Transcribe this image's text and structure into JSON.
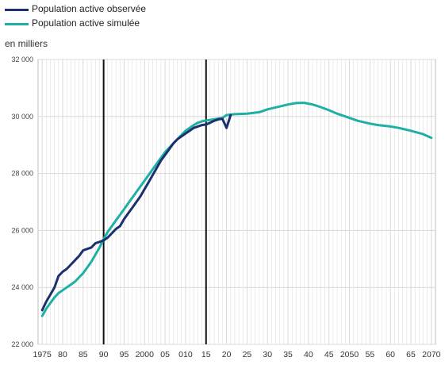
{
  "legend": {
    "observed": "Population active observée",
    "simulated": "Population active simulée"
  },
  "colors": {
    "observed": "#1c2f6e",
    "simulated": "#1fb0a3",
    "grid": "#d9d9d9",
    "marker": "#111111"
  },
  "chart_data": {
    "type": "line",
    "ylabel": "en milliers",
    "ylim": [
      22000,
      32000
    ],
    "xlim": [
      1974,
      2071
    ],
    "yticks": [
      {
        "value": 22000,
        "label": "22 000"
      },
      {
        "value": 24000,
        "label": "24 000"
      },
      {
        "value": 26000,
        "label": "26 000"
      },
      {
        "value": 28000,
        "label": "28 000"
      },
      {
        "value": 30000,
        "label": "30 000"
      },
      {
        "value": 32000,
        "label": "32 000"
      }
    ],
    "xticks": [
      {
        "value": 1975,
        "label": "1975"
      },
      {
        "value": 1980,
        "label": "80"
      },
      {
        "value": 1985,
        "label": "85"
      },
      {
        "value": 1990,
        "label": "90"
      },
      {
        "value": 1995,
        "label": "95"
      },
      {
        "value": 2000,
        "label": "2000"
      },
      {
        "value": 2005,
        "label": "05"
      },
      {
        "value": 2010,
        "label": "010"
      },
      {
        "value": 2015,
        "label": "15"
      },
      {
        "value": 2020,
        "label": "20"
      },
      {
        "value": 2025,
        "label": "25"
      },
      {
        "value": 2030,
        "label": "30"
      },
      {
        "value": 2035,
        "label": "35"
      },
      {
        "value": 2040,
        "label": "40"
      },
      {
        "value": 2045,
        "label": "45"
      },
      {
        "value": 2050,
        "label": "2050"
      },
      {
        "value": 2055,
        "label": "55"
      },
      {
        "value": 2060,
        "label": "60"
      },
      {
        "value": 2065,
        "label": "65"
      },
      {
        "value": 2070,
        "label": "2070"
      }
    ],
    "vertical_markers": [
      1990,
      2015
    ],
    "series": [
      {
        "key": "observed",
        "points": [
          [
            1975,
            23200
          ],
          [
            1976,
            23500
          ],
          [
            1977,
            23750
          ],
          [
            1978,
            24000
          ],
          [
            1979,
            24400
          ],
          [
            1980,
            24550
          ],
          [
            1981,
            24650
          ],
          [
            1982,
            24800
          ],
          [
            1983,
            24950
          ],
          [
            1984,
            25100
          ],
          [
            1985,
            25300
          ],
          [
            1986,
            25350
          ],
          [
            1987,
            25400
          ],
          [
            1988,
            25550
          ],
          [
            1989,
            25600
          ],
          [
            1990,
            25650
          ],
          [
            1991,
            25750
          ],
          [
            1992,
            25900
          ],
          [
            1993,
            26050
          ],
          [
            1994,
            26150
          ],
          [
            1995,
            26400
          ],
          [
            1996,
            26600
          ],
          [
            1997,
            26800
          ],
          [
            1998,
            27000
          ],
          [
            1999,
            27200
          ],
          [
            2000,
            27450
          ],
          [
            2001,
            27700
          ],
          [
            2002,
            27950
          ],
          [
            2003,
            28200
          ],
          [
            2004,
            28450
          ],
          [
            2005,
            28650
          ],
          [
            2006,
            28850
          ],
          [
            2007,
            29050
          ],
          [
            2008,
            29200
          ],
          [
            2009,
            29300
          ],
          [
            2010,
            29400
          ],
          [
            2011,
            29500
          ],
          [
            2012,
            29600
          ],
          [
            2013,
            29650
          ],
          [
            2014,
            29700
          ],
          [
            2015,
            29720
          ],
          [
            2016,
            29780
          ],
          [
            2017,
            29850
          ],
          [
            2018,
            29900
          ],
          [
            2019,
            29920
          ],
          [
            2020,
            29600
          ],
          [
            2021,
            30050
          ]
        ]
      },
      {
        "key": "simulated",
        "points": [
          [
            1975,
            23000
          ],
          [
            1976,
            23250
          ],
          [
            1977,
            23450
          ],
          [
            1978,
            23650
          ],
          [
            1979,
            23800
          ],
          [
            1980,
            23900
          ],
          [
            1981,
            24000
          ],
          [
            1982,
            24100
          ],
          [
            1983,
            24200
          ],
          [
            1984,
            24350
          ],
          [
            1985,
            24500
          ],
          [
            1986,
            24700
          ],
          [
            1987,
            24900
          ],
          [
            1988,
            25150
          ],
          [
            1989,
            25400
          ],
          [
            1990,
            25700
          ],
          [
            1991,
            25950
          ],
          [
            1992,
            26150
          ],
          [
            1993,
            26350
          ],
          [
            1994,
            26550
          ],
          [
            1995,
            26750
          ],
          [
            1996,
            26950
          ],
          [
            1997,
            27150
          ],
          [
            1998,
            27350
          ],
          [
            1999,
            27550
          ],
          [
            2000,
            27750
          ],
          [
            2001,
            27950
          ],
          [
            2002,
            28150
          ],
          [
            2003,
            28350
          ],
          [
            2004,
            28550
          ],
          [
            2005,
            28750
          ],
          [
            2006,
            28900
          ],
          [
            2007,
            29050
          ],
          [
            2008,
            29200
          ],
          [
            2009,
            29350
          ],
          [
            2010,
            29500
          ],
          [
            2011,
            29600
          ],
          [
            2012,
            29700
          ],
          [
            2013,
            29780
          ],
          [
            2014,
            29830
          ],
          [
            2015,
            29860
          ],
          [
            2016,
            29880
          ],
          [
            2017,
            29900
          ],
          [
            2018,
            29930
          ],
          [
            2019,
            29950
          ],
          [
            2020,
            30050
          ],
          [
            2022,
            30080
          ],
          [
            2025,
            30100
          ],
          [
            2028,
            30150
          ],
          [
            2030,
            30250
          ],
          [
            2033,
            30350
          ],
          [
            2035,
            30420
          ],
          [
            2037,
            30470
          ],
          [
            2039,
            30480
          ],
          [
            2041,
            30420
          ],
          [
            2043,
            30330
          ],
          [
            2045,
            30220
          ],
          [
            2047,
            30100
          ],
          [
            2050,
            29950
          ],
          [
            2052,
            29850
          ],
          [
            2055,
            29750
          ],
          [
            2057,
            29700
          ],
          [
            2060,
            29650
          ],
          [
            2062,
            29600
          ],
          [
            2065,
            29500
          ],
          [
            2068,
            29380
          ],
          [
            2070,
            29250
          ]
        ]
      }
    ]
  }
}
